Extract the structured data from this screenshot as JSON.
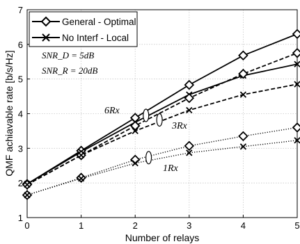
{
  "chart_data": {
    "type": "line",
    "xlabel": "Number of relays",
    "ylabel": "QMF achiavable rate [b/s/Hz]",
    "xlim": [
      0,
      5
    ],
    "ylim": [
      1,
      7
    ],
    "xticks": [
      "0",
      "1",
      "2",
      "3",
      "4",
      "5"
    ],
    "yticks": [
      "1",
      "2",
      "3",
      "4",
      "5",
      "6",
      "7"
    ],
    "grid": true,
    "legend": {
      "placement": "top-left",
      "entries": [
        {
          "label": "General - Optimal",
          "marker": "diamond",
          "style": "solid"
        },
        {
          "label": "No Interf - Local",
          "marker": "x",
          "style": "solid"
        }
      ]
    },
    "annotations": {
      "snr_d": "SNR_D = 5dB",
      "snr_r": "SNR_R = 20dB",
      "rx6": "6Rx",
      "rx3": "3Rx",
      "rx1": "1Rx"
    },
    "x": [
      0,
      1,
      2,
      3,
      4,
      5
    ],
    "series": [
      {
        "group": "6Rx",
        "marker": "diamond",
        "style": "solid",
        "color": "#000000",
        "values": [
          1.97,
          2.93,
          3.88,
          4.83,
          5.68,
          6.3
        ]
      },
      {
        "group": "6Rx",
        "marker": "x",
        "style": "solid",
        "color": "#000000",
        "values": [
          1.97,
          2.9,
          3.75,
          4.55,
          5.1,
          5.43
        ]
      },
      {
        "group": "3Rx",
        "marker": "diamond",
        "style": "dashed",
        "color": "#000000",
        "values": [
          1.95,
          2.8,
          3.65,
          4.45,
          5.15,
          5.75
        ]
      },
      {
        "group": "3Rx",
        "marker": "x",
        "style": "dashed",
        "color": "#000000",
        "values": [
          1.95,
          2.8,
          3.5,
          4.1,
          4.55,
          4.85
        ]
      },
      {
        "group": "1Rx",
        "marker": "diamond",
        "style": "dotted",
        "color": "#000000",
        "values": [
          1.65,
          2.15,
          2.67,
          3.07,
          3.35,
          3.6
        ]
      },
      {
        "group": "1Rx",
        "marker": "x",
        "style": "dotted",
        "color": "#000000",
        "values": [
          1.65,
          2.13,
          2.57,
          2.87,
          3.05,
          3.23
        ]
      }
    ]
  }
}
